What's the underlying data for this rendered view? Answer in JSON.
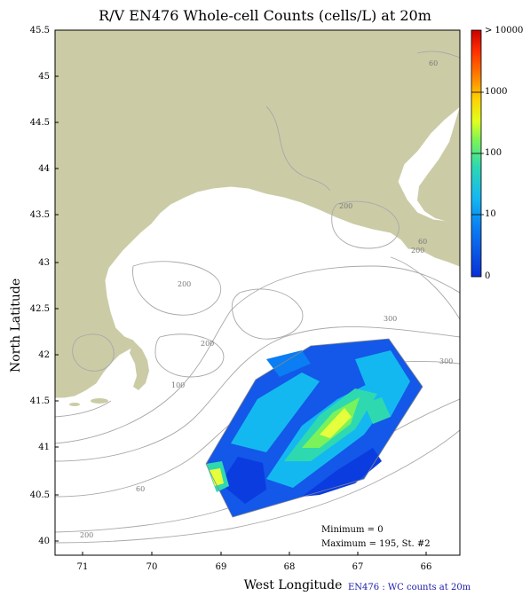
{
  "title": "R/V EN476 Whole-cell Counts (cells/L) at 20m",
  "x_axis": {
    "label": "West Longitude",
    "ticks": [
      "71",
      "70",
      "69",
      "68",
      "67",
      "66"
    ]
  },
  "y_axis": {
    "label": "North Latitude",
    "ticks": [
      "45.5",
      "45",
      "44.5",
      "44",
      "43.5",
      "43",
      "42.5",
      "42",
      "41.5",
      "41",
      "40.5",
      "40"
    ]
  },
  "legend": {
    "labels": [
      "> 10000",
      "1000",
      "100",
      "10",
      "0"
    ],
    "colors": [
      "#c80000",
      "#ff2a00",
      "#ff7a00",
      "#ffd200",
      "#e0ff20",
      "#7af25a",
      "#2fd9b0",
      "#14b8f0",
      "#0a7ef2",
      "#0a3ce0"
    ]
  },
  "contour_labels": [
    "60",
    "200",
    "60",
    "200",
    "200",
    "100",
    "200",
    "300",
    "300",
    "60",
    "200"
  ],
  "stats": {
    "minimum": "Minimum = 0",
    "maximum": "Maximum = 195, St. #2"
  },
  "credit": "EN476 : WC counts at 20m",
  "colors": {
    "land": "#cbcca6",
    "contour": "#a8a8a8",
    "low": "#0a3ce0",
    "high": "#e6ff3c"
  }
}
